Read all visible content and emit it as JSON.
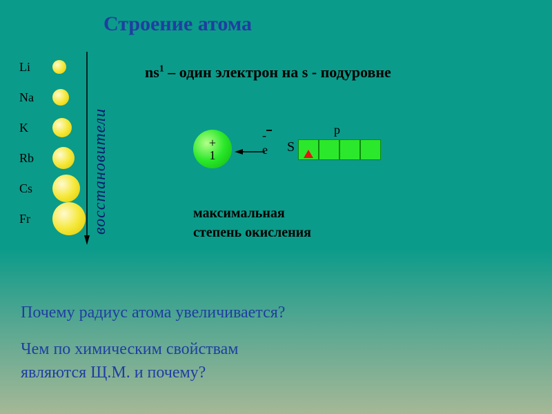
{
  "title": "Строение атома",
  "elements": [
    {
      "label": "Li",
      "radius": 10
    },
    {
      "label": "Na",
      "radius": 12
    },
    {
      "label": "K",
      "radius": 14
    },
    {
      "label": "Rb",
      "radius": 16
    },
    {
      "label": "Cs",
      "radius": 20
    },
    {
      "label": "Fr",
      "radius": 24
    }
  ],
  "reducers_label": "восстановители",
  "ns_formula": {
    "prefix": "ns",
    "sup": "1",
    "rest": " – один электрон на s - подуровне"
  },
  "ion": {
    "plus": "+",
    "one": "1"
  },
  "e_label": "- e",
  "s_label": "S",
  "p_label": "p",
  "orbital_boxes": [
    {
      "has_electron": true
    },
    {
      "has_electron": false
    },
    {
      "has_electron": false
    },
    {
      "has_electron": false
    }
  ],
  "max_oxidation": "максимальная\nстепень окисления",
  "question1": "Почему радиус атома увеличивается?",
  "question2": "Чем по химическим свойствам\nявляются Щ.М. и почему?",
  "colors": {
    "title": "#1f3ea1",
    "question": "#1f3ea1",
    "reducers": "#071a6e",
    "box_fill": "#2ce82c",
    "box_border": "#0b8a0b",
    "electron": "#e41414",
    "circle_yellow": "#f5e83a",
    "circle_green": "#2ae82a"
  },
  "arrow_down": {
    "length": 270,
    "color": "#000"
  },
  "arrow_left": {
    "length": 40,
    "color": "#000"
  }
}
